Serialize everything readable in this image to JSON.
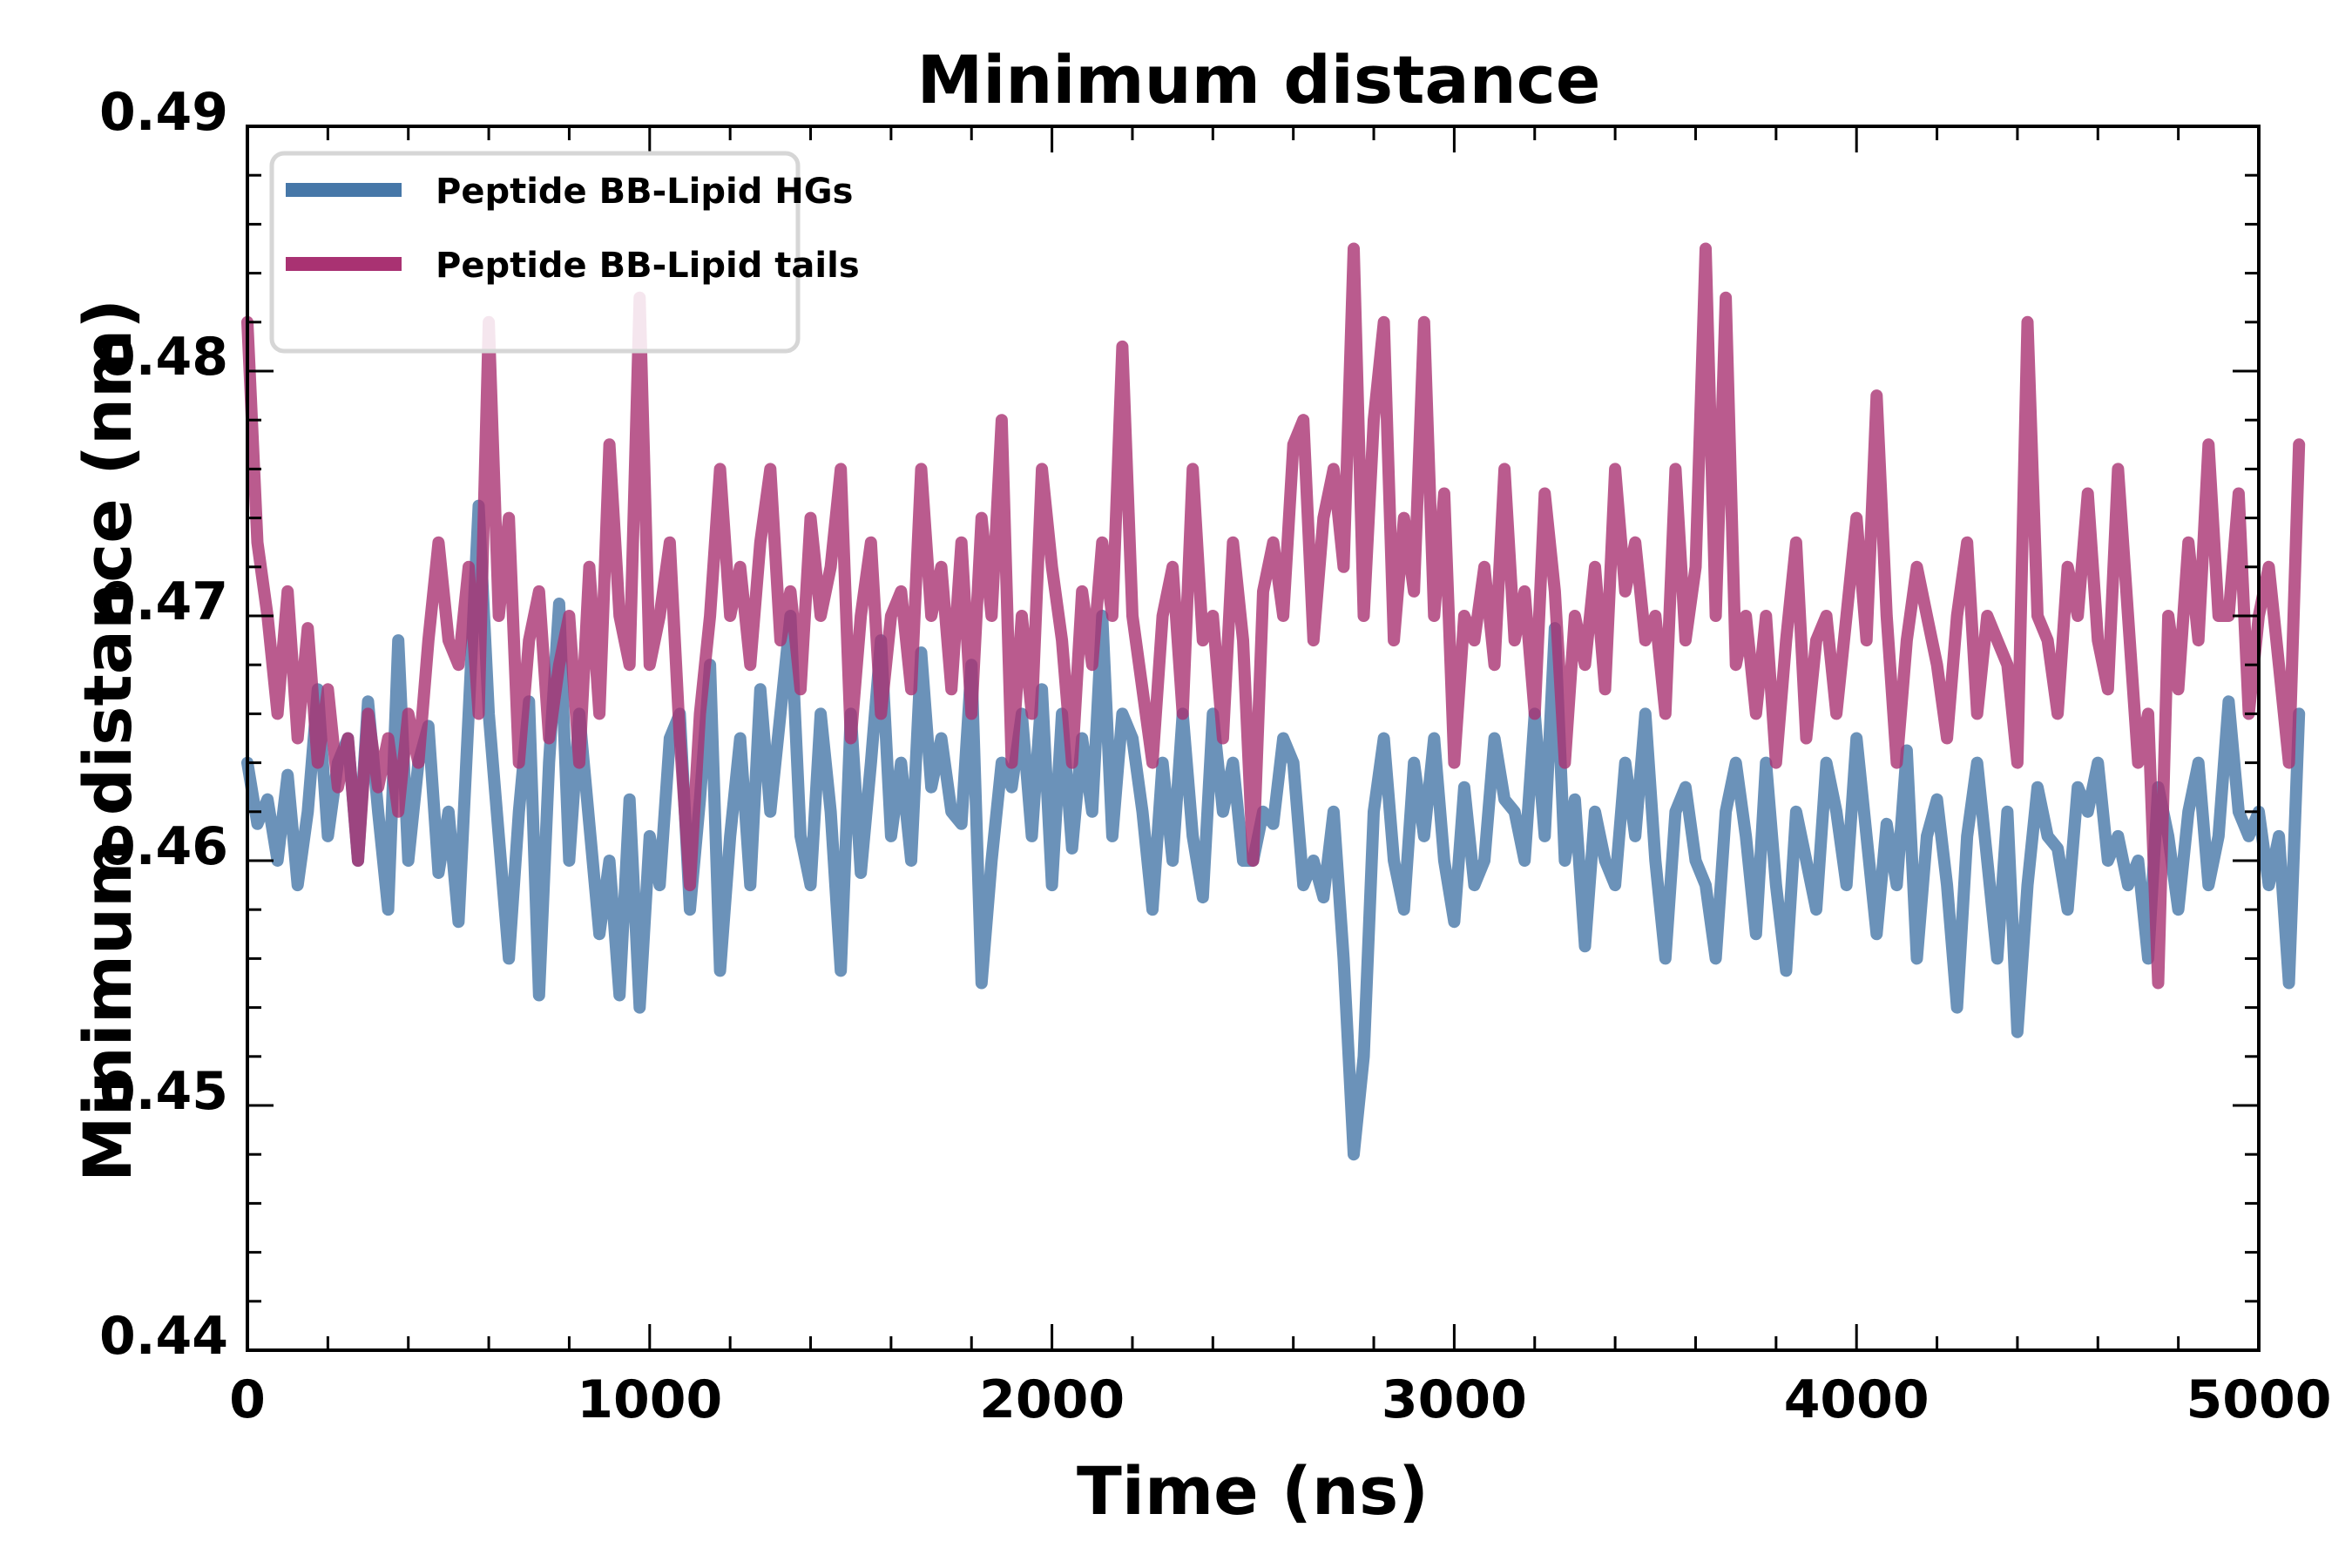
{
  "chart_data": {
    "type": "line",
    "title": "Minimum distance",
    "xlabel": "Time (ns)",
    "ylabel": "Minimum distance (nm)",
    "xlim": [
      0,
      5000
    ],
    "ylim": [
      0.44,
      0.49
    ],
    "x_ticks": [
      0,
      1000,
      2000,
      3000,
      4000,
      5000
    ],
    "x_tick_labels": [
      "0",
      "1000",
      "2000",
      "3000",
      "4000",
      "5000"
    ],
    "x_minor_step": 200,
    "y_ticks": [
      0.44,
      0.45,
      0.46,
      0.47,
      0.48,
      0.49
    ],
    "y_tick_labels": [
      "0.44",
      "0.45",
      "0.46",
      "0.47",
      "0.48",
      "0.49"
    ],
    "y_minor_step": 0.002,
    "ticks_direction": "in",
    "ticks_on_all_sides": true,
    "grid": false,
    "legend_position": "top-left",
    "x_step": 25,
    "series": [
      {
        "name": "Peptide BB-Lipid HGs",
        "color": "#4677a8",
        "alpha": 0.8,
        "values": [
          0.464,
          0.4615,
          0.4625,
          0.46,
          0.4635,
          0.459,
          0.462,
          0.467,
          0.461,
          0.464,
          0.465,
          0.46,
          0.4665,
          0.462,
          0.458,
          0.469,
          0.46,
          0.464,
          0.4655,
          0.4595,
          0.462,
          0.4575,
          0.466,
          0.4745,
          0.466,
          0.461,
          0.456,
          0.462,
          0.4665,
          0.4545,
          0.464,
          0.4705,
          0.46,
          0.466,
          0.4615,
          0.457,
          0.46,
          0.4545,
          0.4625,
          0.454,
          0.461,
          0.459,
          0.465,
          0.466,
          0.458,
          0.4625,
          0.468,
          0.4555,
          0.461,
          0.465,
          0.459,
          0.467,
          0.462,
          0.466,
          0.47,
          0.461,
          0.459,
          0.466,
          0.462,
          0.4555,
          0.466,
          0.4595,
          0.464,
          0.469,
          0.461,
          0.464,
          0.46,
          0.4685,
          0.463,
          0.465,
          0.462,
          0.4615,
          0.468,
          0.455,
          0.46,
          0.464,
          0.463,
          0.466,
          0.461,
          0.467,
          0.459,
          0.466,
          0.4605,
          0.465,
          0.462,
          0.47,
          0.461,
          0.466,
          0.465,
          0.462,
          0.458,
          0.464,
          0.46,
          0.466,
          0.461,
          0.4585,
          0.466,
          0.462,
          0.464,
          0.46,
          0.46,
          0.462,
          0.4615,
          0.465,
          0.464,
          0.459,
          0.46,
          0.4585,
          0.462,
          0.456,
          0.448,
          0.452,
          0.462,
          0.465,
          0.46,
          0.458,
          0.464,
          0.461,
          0.465,
          0.46,
          0.4575,
          0.463,
          0.459,
          0.46,
          0.465,
          0.4625,
          0.462,
          0.46,
          0.466,
          0.461,
          0.4695,
          0.46,
          0.4625,
          0.4565,
          0.462,
          0.46,
          0.459,
          0.464,
          0.461,
          0.466,
          0.46,
          0.456,
          0.462,
          0.463,
          0.46,
          0.459,
          0.456,
          0.462,
          0.464,
          0.461,
          0.457,
          0.464,
          0.459,
          0.4555,
          0.462,
          0.46,
          0.458,
          0.464,
          0.462,
          0.459,
          0.465,
          0.461,
          0.457,
          0.4615,
          0.459,
          0.4645,
          0.456,
          0.461,
          0.4625,
          0.459,
          0.454,
          0.461,
          0.464,
          0.46,
          0.456,
          0.462,
          0.453,
          0.459,
          0.463,
          0.461,
          0.4605,
          0.458,
          0.463,
          0.462,
          0.464,
          0.46,
          0.461,
          0.459,
          0.46,
          0.456,
          0.463,
          0.461,
          0.458,
          0.462,
          0.464,
          0.459,
          0.461,
          0.4665,
          0.462,
          0.461,
          0.462,
          0.459,
          0.461,
          0.455,
          0.466
        ],
        "values_part2_note": ""
      },
      {
        "name": "Peptide BB-Lipid tails",
        "color": "#a93272",
        "alpha": 0.8,
        "values": [
          0.482,
          0.473,
          0.47,
          0.466,
          0.471,
          0.465,
          0.4695,
          0.464,
          0.467,
          0.463,
          0.465,
          0.46,
          0.466,
          0.463,
          0.465,
          0.462,
          0.466,
          0.464,
          0.469,
          0.473,
          0.469,
          0.468,
          0.472,
          0.466,
          0.482,
          0.47,
          0.474,
          0.464,
          0.469,
          0.471,
          0.465,
          0.468,
          0.47,
          0.464,
          0.472,
          0.466,
          0.477,
          0.47,
          0.468,
          0.483,
          0.468,
          0.47,
          0.473,
          0.465,
          0.459,
          0.466,
          0.47,
          0.476,
          0.47,
          0.472,
          0.468,
          0.473,
          0.476,
          0.469,
          0.471,
          0.467,
          0.474,
          0.47,
          0.472,
          0.476,
          0.465,
          0.47,
          0.473,
          0.466,
          0.47,
          0.471,
          0.467,
          0.476,
          0.47,
          0.472,
          0.467,
          0.473,
          0.466,
          0.474,
          0.47,
          0.478,
          0.464,
          0.47,
          0.466,
          0.476,
          0.472,
          0.469,
          0.464,
          0.471,
          0.468,
          0.473,
          0.47,
          0.481,
          0.47,
          0.467,
          0.464,
          0.47,
          0.472,
          0.466,
          0.476,
          0.469,
          0.47,
          0.465,
          0.473,
          0.469,
          0.46,
          0.471,
          0.473,
          0.47,
          0.477,
          0.478,
          0.469,
          0.474,
          0.476,
          0.472,
          0.485,
          0.47,
          0.478,
          0.482,
          0.469,
          0.474,
          0.471,
          0.482,
          0.47,
          0.475,
          0.464,
          0.47,
          0.469,
          0.472,
          0.468,
          0.476,
          0.469,
          0.471,
          0.466,
          0.475,
          0.471,
          0.464,
          0.47,
          0.468,
          0.472,
          0.467,
          0.476,
          0.471,
          0.473,
          0.469,
          0.47,
          0.466,
          0.476,
          0.469,
          0.472,
          0.485,
          0.47,
          0.483,
          0.468,
          0.47,
          0.466,
          0.47,
          0.464,
          0.469,
          0.473,
          0.465,
          0.469,
          0.47,
          0.466,
          0.47,
          0.474,
          0.469,
          0.479,
          0.47,
          0.464,
          0.469,
          0.472,
          0.47,
          0.468,
          0.465,
          0.47,
          0.473,
          0.466,
          0.47,
          0.469,
          0.468,
          0.464,
          0.482,
          0.47,
          0.469,
          0.466,
          0.472,
          0.47,
          0.475,
          0.469,
          0.467,
          0.476,
          0.47,
          0.464,
          0.466,
          0.455,
          0.47,
          0.467,
          0.473,
          0.469,
          0.477,
          0.47,
          0.47,
          0.475,
          0.466,
          0.47,
          0.472,
          0.468,
          0.464,
          0.477
        ]
      }
    ]
  },
  "legend": {
    "items": [
      {
        "label": "Peptide BB-Lipid HGs",
        "color": "#4677a8"
      },
      {
        "label": "Peptide BB-Lipid tails",
        "color": "#a93272"
      }
    ]
  }
}
